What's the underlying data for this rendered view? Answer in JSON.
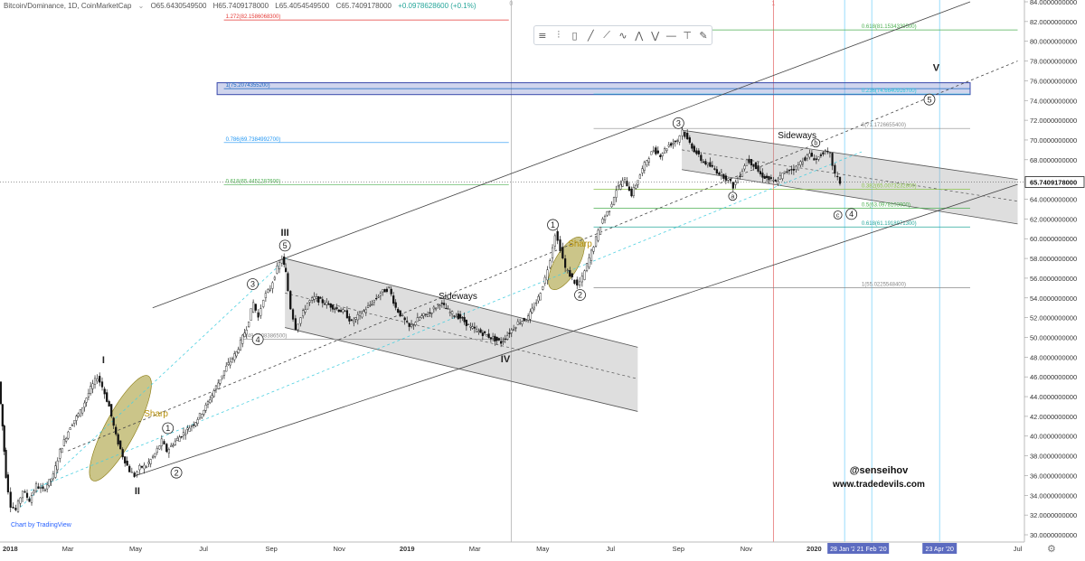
{
  "header": {
    "symbol": "Bitcoin/Dominance, 1D, CoinMarketCap",
    "open": "O65.6430549500",
    "high": "H65.7409178000",
    "low": "L65.4054549500",
    "close": "C65.7409178000",
    "change": "+0.0978628600 (+0.1%)"
  },
  "toolbar": {
    "icons": [
      "lines-icon",
      "bars-icon",
      "candles-icon",
      "line-tool-icon",
      "trend-icon",
      "wave-icon",
      "pattern-icon",
      "fib-icon",
      "hline-icon",
      "text-tool-icon",
      "brush-icon"
    ]
  },
  "watermark": "Chart by TradingView",
  "signature": {
    "handle": "@senseihov",
    "site": "www.tradedevils.com"
  },
  "chart_data": {
    "type": "candlestick",
    "title": "",
    "xlabel": "",
    "ylabel": "",
    "ylim": [
      30,
      84
    ],
    "y_ticks": [
      "30.0000000000",
      "32.0000000000",
      "34.0000000000",
      "36.0000000000",
      "38.0000000000",
      "40.0000000000",
      "42.0000000000",
      "44.0000000000",
      "46.0000000000",
      "48.0000000000",
      "50.0000000000",
      "52.0000000000",
      "54.0000000000",
      "56.0000000000",
      "58.0000000000",
      "60.0000000000",
      "62.0000000000",
      "64.0000000000",
      "66.0000000000",
      "68.0000000000",
      "70.0000000000",
      "72.0000000000",
      "74.0000000000",
      "76.0000000000",
      "78.0000000000",
      "80.0000000000",
      "82.0000000000",
      "84.0000000000"
    ],
    "x_ticks": [
      {
        "t": 0,
        "label": "2018"
      },
      {
        "t": 2,
        "label": "Mar"
      },
      {
        "t": 4,
        "label": "May"
      },
      {
        "t": 6,
        "label": "Jul"
      },
      {
        "t": 8,
        "label": "Sep"
      },
      {
        "t": 10,
        "label": "Nov"
      },
      {
        "t": 12,
        "label": "2019"
      },
      {
        "t": 14,
        "label": "Mar"
      },
      {
        "t": 16,
        "label": "May"
      },
      {
        "t": 18,
        "label": "Jul"
      },
      {
        "t": 20,
        "label": "Sep"
      },
      {
        "t": 22,
        "label": "Nov"
      },
      {
        "t": 24,
        "label": "2020"
      },
      {
        "t": 30,
        "label": "Jul"
      }
    ],
    "current_price": "65.7409178000",
    "date_markers": [
      {
        "t": 24.9,
        "label": "28 Jan '20"
      },
      {
        "t": 25.7,
        "label": "21 Feb '20"
      },
      {
        "t": 27.7,
        "label": "23 Apr '20"
      }
    ],
    "price_path": [
      [
        0,
        45.5
      ],
      [
        0.1,
        41
      ],
      [
        0.2,
        36
      ],
      [
        0.35,
        33
      ],
      [
        0.5,
        32.5
      ],
      [
        0.7,
        34.5
      ],
      [
        0.9,
        33.5
      ],
      [
        1.1,
        35
      ],
      [
        1.3,
        34.5
      ],
      [
        1.6,
        36
      ],
      [
        1.8,
        38.5
      ],
      [
        2.1,
        41
      ],
      [
        2.4,
        42.5
      ],
      [
        2.7,
        44.8
      ],
      [
        2.9,
        46
      ],
      [
        3.05,
        45
      ],
      [
        3.25,
        43
      ],
      [
        3.45,
        40
      ],
      [
        3.65,
        38
      ],
      [
        3.85,
        36.5
      ],
      [
        4,
        36
      ],
      [
        4.15,
        36.8
      ],
      [
        4.35,
        37
      ],
      [
        4.6,
        38.2
      ],
      [
        4.8,
        39.5
      ],
      [
        4.95,
        38.5
      ],
      [
        5.2,
        39.5
      ],
      [
        5.5,
        40.5
      ],
      [
        5.8,
        41.5
      ],
      [
        6.1,
        43
      ],
      [
        6.4,
        45
      ],
      [
        6.7,
        47
      ],
      [
        7,
        48.5
      ],
      [
        7.3,
        51
      ],
      [
        7.5,
        53.5
      ],
      [
        7.65,
        52
      ],
      [
        7.8,
        54
      ],
      [
        8,
        55
      ],
      [
        8.2,
        57
      ],
      [
        8.35,
        58
      ],
      [
        8.45,
        56.5
      ],
      [
        8.6,
        53
      ],
      [
        8.75,
        51
      ],
      [
        8.9,
        52
      ],
      [
        9.1,
        53.5
      ],
      [
        9.3,
        54
      ],
      [
        9.6,
        53.5
      ],
      [
        9.9,
        53
      ],
      [
        10.2,
        52.5
      ],
      [
        10.4,
        51.5
      ],
      [
        10.7,
        52.5
      ],
      [
        11,
        53.5
      ],
      [
        11.25,
        54.5
      ],
      [
        11.5,
        55
      ],
      [
        11.7,
        53
      ],
      [
        11.9,
        52
      ],
      [
        12.1,
        51
      ],
      [
        12.4,
        52
      ],
      [
        12.7,
        52.5
      ],
      [
        13,
        53.5
      ],
      [
        13.3,
        52.5
      ],
      [
        13.6,
        52
      ],
      [
        13.9,
        51
      ],
      [
        14.2,
        50.5
      ],
      [
        14.5,
        50
      ],
      [
        14.8,
        49.5
      ],
      [
        15.05,
        50.5
      ],
      [
        15.3,
        51.5
      ],
      [
        15.6,
        52
      ],
      [
        15.9,
        54
      ],
      [
        16.1,
        56
      ],
      [
        16.25,
        58
      ],
      [
        16.4,
        60.5
      ],
      [
        16.55,
        59
      ],
      [
        16.7,
        57
      ],
      [
        16.9,
        56
      ],
      [
        17.05,
        55.2
      ],
      [
        17.2,
        56
      ],
      [
        17.4,
        58
      ],
      [
        17.6,
        60
      ],
      [
        17.8,
        62
      ],
      [
        18,
        63
      ],
      [
        18.2,
        65
      ],
      [
        18.45,
        66
      ],
      [
        18.65,
        64.5
      ],
      [
        18.9,
        66.5
      ],
      [
        19.1,
        68
      ],
      [
        19.3,
        69
      ],
      [
        19.5,
        68.5
      ],
      [
        19.75,
        69.5
      ],
      [
        20,
        70
      ],
      [
        20.15,
        71
      ],
      [
        20.3,
        70
      ],
      [
        20.5,
        69
      ],
      [
        20.7,
        68
      ],
      [
        20.9,
        67.5
      ],
      [
        21.1,
        67
      ],
      [
        21.3,
        66.5
      ],
      [
        21.5,
        66
      ],
      [
        21.65,
        65.3
      ],
      [
        21.85,
        66.5
      ],
      [
        22.05,
        68
      ],
      [
        22.25,
        67.5
      ],
      [
        22.45,
        66.5
      ],
      [
        22.7,
        66
      ],
      [
        22.9,
        65.7
      ],
      [
        23.1,
        66.5
      ],
      [
        23.3,
        67
      ],
      [
        23.5,
        67.2
      ],
      [
        23.7,
        68
      ],
      [
        23.9,
        68.5
      ],
      [
        24.1,
        68
      ],
      [
        24.3,
        68.8
      ],
      [
        24.5,
        68.5
      ],
      [
        24.65,
        66.5
      ],
      [
        24.8,
        65.7
      ]
    ],
    "trendlines": [
      {
        "name": "outer-parallel-upper",
        "from": [
          4.5,
          53
        ],
        "to": [
          28.6,
          84
        ]
      },
      {
        "name": "outer-parallel-lower",
        "from": [
          4,
          36
        ],
        "to": [
          30,
          65.5
        ]
      },
      {
        "name": "inner-dashed-median",
        "from": [
          2,
          38.5
        ],
        "to": [
          30,
          78
        ]
      },
      {
        "name": "wave-projection-upper",
        "from": [
          0.6,
          32.8
        ],
        "to": [
          8.45,
          58
        ]
      },
      {
        "name": "wave-projection-mid",
        "from": [
          0.9,
          34.5
        ],
        "to": [
          25.4,
          68.8
        ]
      }
    ],
    "channels": [
      {
        "name": "correction-channel-iv",
        "top_from": [
          8.4,
          58
        ],
        "top_to": [
          18.8,
          49
        ],
        "bottom_from": [
          8.4,
          51
        ],
        "bottom_to": [
          18.8,
          42.5
        ],
        "mid_from": [
          8.4,
          54.5
        ],
        "mid_to": [
          18.8,
          45.8
        ]
      },
      {
        "name": "sideways-channel",
        "top_from": [
          20.1,
          71
        ],
        "top_to": [
          30,
          66
        ],
        "bottom_from": [
          20.1,
          67
        ],
        "bottom_to": [
          30,
          61.5
        ],
        "mid_from": [
          20.1,
          69
        ],
        "mid_to": [
          30,
          63.8
        ]
      }
    ],
    "fib_levels": [
      {
        "label": "1.272(82.1586068300)",
        "value": 82.16,
        "x_from": 6.6,
        "x_to": 15,
        "color": "#e53935"
      },
      {
        "label": "0.618(81.1534339500)",
        "value": 81.15,
        "x_from": 20.8,
        "x_to": 30,
        "color": "#4caf50"
      },
      {
        "label": "1(75.2074355200)",
        "value": 75.2,
        "x_from": 6.6,
        "x_to": 28.6,
        "color": "#1565c0"
      },
      {
        "label": "0.236(74.6640916700)",
        "value": 74.66,
        "x_from": 17.5,
        "x_to": 28.6,
        "color": "#26c6da"
      },
      {
        "label": "0(71.1726655400)",
        "value": 71.17,
        "x_from": 17.5,
        "x_to": 28.6,
        "color": "#888888"
      },
      {
        "label": "0.786(69.7384992700)",
        "value": 69.74,
        "x_from": 6.6,
        "x_to": 15,
        "color": "#2196f3"
      },
      {
        "label": "0.618(65.4451287600)",
        "value": 65.45,
        "x_from": 6.6,
        "x_to": 15,
        "color": "#4caf50"
      },
      {
        "label": "0.382(65.0073232800)",
        "value": 65.0,
        "x_from": 17.5,
        "x_to": 28.6,
        "color": "#8bc34a"
      },
      {
        "label": "0.5(63.0978103900)",
        "value": 63.1,
        "x_from": 17.5,
        "x_to": 28.6,
        "color": "#4caf50"
      },
      {
        "label": "0.618(61.1918971300)",
        "value": 61.19,
        "x_from": 17.5,
        "x_to": 28.6,
        "color": "#26a69a"
      },
      {
        "label": "1(55.0225548400)",
        "value": 55.02,
        "x_from": 17.5,
        "x_to": 28.6,
        "color": "#888888"
      },
      {
        "label": "0(49.8008386500)",
        "value": 49.8,
        "x_from": 7.1,
        "x_to": 15,
        "color": "#888888"
      }
    ],
    "demand_zone": {
      "y_from": 74.6,
      "y_to": 75.8,
      "x_from": 6.4,
      "x_to": 28.6
    },
    "wave_labels": [
      {
        "text": "I",
        "t": 3.05,
        "v": 47.4,
        "style": "roman"
      },
      {
        "text": "II",
        "t": 4.05,
        "v": 34.1,
        "style": "roman"
      },
      {
        "text": "III",
        "t": 8.4,
        "v": 60.3,
        "style": "roman"
      },
      {
        "text": "IV",
        "t": 14.9,
        "v": 47.5,
        "style": "roman"
      },
      {
        "text": "V",
        "t": 27.6,
        "v": 77,
        "style": "roman"
      },
      {
        "text": "1",
        "t": 4.95,
        "v": 40.8,
        "style": "circle"
      },
      {
        "text": "2",
        "t": 5.2,
        "v": 36.3,
        "style": "circle"
      },
      {
        "text": "3",
        "t": 7.45,
        "v": 55.4,
        "style": "circle"
      },
      {
        "text": "4",
        "t": 7.6,
        "v": 49.8,
        "style": "circle"
      },
      {
        "text": "5",
        "t": 8.4,
        "v": 59.3,
        "style": "circle"
      },
      {
        "text": "1",
        "t": 16.3,
        "v": 61.4,
        "style": "circle"
      },
      {
        "text": "2",
        "t": 17.1,
        "v": 54.3,
        "style": "circle"
      },
      {
        "text": "3",
        "t": 20,
        "v": 71.7,
        "style": "circle"
      },
      {
        "text": "4",
        "t": 25.1,
        "v": 62.5,
        "style": "circle"
      },
      {
        "text": "5",
        "t": 27.4,
        "v": 74.1,
        "style": "circle"
      },
      {
        "text": "a",
        "t": 21.6,
        "v": 64.3,
        "style": "small-circle"
      },
      {
        "text": "b",
        "t": 24.05,
        "v": 69.7,
        "style": "small-circle"
      },
      {
        "text": "c",
        "t": 24.7,
        "v": 62.4,
        "style": "small-circle"
      }
    ],
    "annotations": [
      {
        "text": "Sharp",
        "t": 4.6,
        "v": 42,
        "color": "#b8900a"
      },
      {
        "text": "Sharp",
        "t": 17.1,
        "v": 59.2,
        "color": "#b8900a"
      },
      {
        "text": "Sideways",
        "t": 13.5,
        "v": 53.9,
        "color": "#111111"
      },
      {
        "text": "Sideways",
        "t": 23.5,
        "v": 70.2,
        "color": "#111111"
      }
    ],
    "sharp_ellipses": [
      {
        "cx_t": 3.55,
        "cy_v": 40.8,
        "rx_t": 0.45,
        "ry_v": 6
      },
      {
        "cx_t": 16.7,
        "cy_v": 57.5,
        "rx_t": 0.35,
        "ry_v": 3
      }
    ],
    "vertical_markers": [
      {
        "label": "0",
        "t": 15.07,
        "color": "#b0b0b0"
      },
      {
        "label": "1",
        "t": 22.8,
        "color": "#e57373"
      }
    ]
  }
}
